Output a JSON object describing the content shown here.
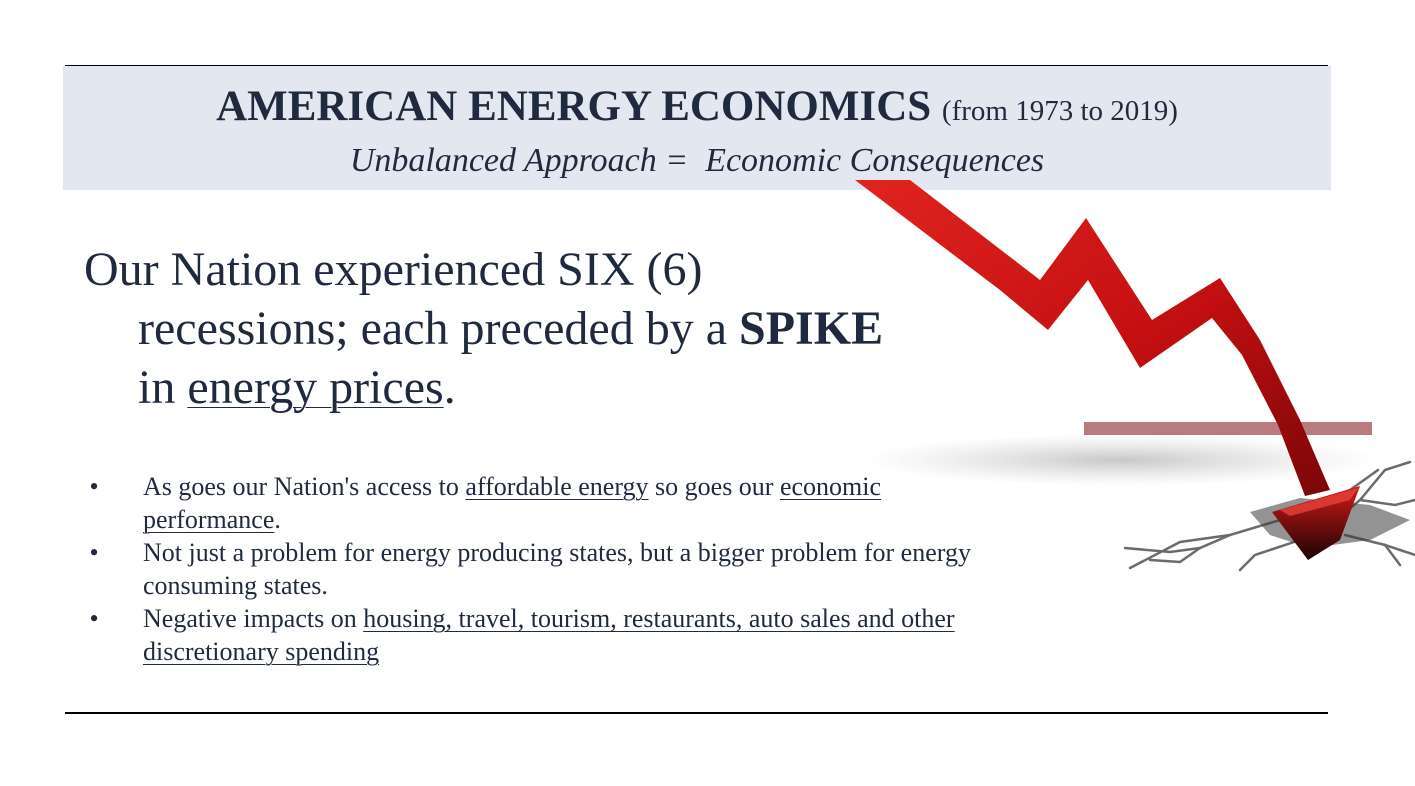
{
  "header": {
    "title": "AMERICAN ENERGY ECONOMICS",
    "title_range": "(from 1973 to 2019)",
    "subtitle_left": "Unbalanced Approach",
    "subtitle_equals": "=",
    "subtitle_right": "Economic Consequences"
  },
  "headline": {
    "line1": "Our Nation experienced SIX (6)",
    "line2_pre": "recessions; each preceded by a ",
    "line2_strong": "SPIKE",
    "line3_pre": "in ",
    "line3_link": "energy prices",
    "line3_post": "."
  },
  "bullets": [
    {
      "marker": "•",
      "t1": "As goes our Nation's access to ",
      "u1": "affordable energy",
      "t2": " so goes our ",
      "u2": "economic performance",
      "t3": "."
    },
    {
      "marker": "•",
      "t1": "Not just a problem for energy producing states, but a bigger problem for energy consuming states."
    },
    {
      "marker": "•",
      "t1": "Negative impacts on ",
      "u1": "housing, travel, tourism, restaurants, auto sales and other discretionary spending"
    }
  ],
  "colors": {
    "text": "#1f2a3e",
    "header_band": "#e3e8f0",
    "arrow_red": "#c40f12",
    "arrow_dark": "#7a0608",
    "bar": "#b97b7e"
  },
  "icons": {
    "arrow_graphic": "falling-red-arrow-icon"
  }
}
